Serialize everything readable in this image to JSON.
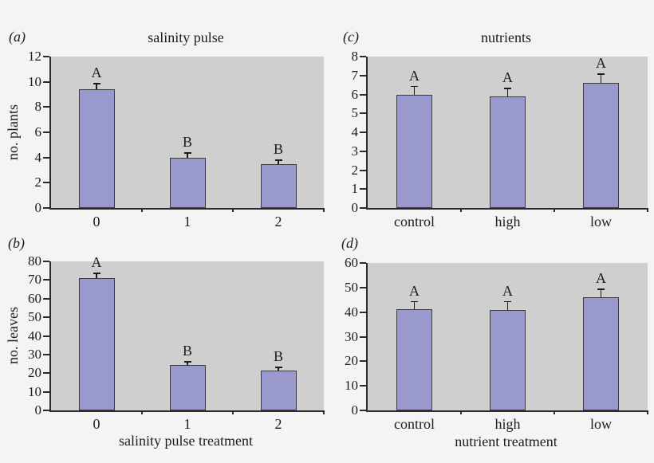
{
  "colors": {
    "bar_fill": "#9a99ce",
    "bar_border": "#3d3d3d",
    "plot_bg": "#cfcfcf",
    "page_bg": "#f4f4f4",
    "axis": "#2b2b2b",
    "text": "#1c1c1c"
  },
  "chart_data": [
    {
      "panel": "a",
      "panel_label": "(a)",
      "type": "bar",
      "title": "salinity pulse",
      "ylabel": "no. plants",
      "xlabel": "",
      "categories": [
        "0",
        "1",
        "2"
      ],
      "values": [
        9.4,
        4.0,
        3.5
      ],
      "errors_plus": [
        0.5,
        0.4,
        0.35
      ],
      "sig_letters": [
        "A",
        "B",
        "B"
      ],
      "ylim": [
        0,
        12
      ],
      "ytick_step": 2,
      "grid": false,
      "legend": false
    },
    {
      "panel": "b",
      "panel_label": "(b)",
      "type": "bar",
      "title": "",
      "ylabel": "no. leaves",
      "xlabel": "salinity pulse treatment",
      "categories": [
        "0",
        "1",
        "2"
      ],
      "values": [
        71,
        24.5,
        21.5
      ],
      "errors_plus": [
        3,
        2,
        2
      ],
      "sig_letters": [
        "A",
        "B",
        "B"
      ],
      "ylim": [
        0,
        80
      ],
      "ytick_step": 10,
      "grid": false,
      "legend": false
    },
    {
      "panel": "c",
      "panel_label": "(c)",
      "type": "bar",
      "title": "nutrients",
      "ylabel": "",
      "xlabel": "",
      "categories": [
        "control",
        "high",
        "low"
      ],
      "values": [
        6.0,
        5.9,
        6.6
      ],
      "errors_plus": [
        0.45,
        0.45,
        0.5
      ],
      "sig_letters": [
        "A",
        "A",
        "A"
      ],
      "ylim": [
        0,
        8
      ],
      "ytick_step": 1,
      "grid": false,
      "legend": false
    },
    {
      "panel": "d",
      "panel_label": "(d)",
      "type": "bar",
      "title": "",
      "ylabel": "",
      "xlabel": "nutrient treatment",
      "categories": [
        "control",
        "high",
        "low"
      ],
      "values": [
        41.3,
        41,
        46
      ],
      "errors_plus": [
        3.2,
        3.5,
        3.5
      ],
      "sig_letters": [
        "A",
        "A",
        "A"
      ],
      "ylim": [
        0,
        60
      ],
      "ytick_step": 10,
      "grid": false,
      "legend": false
    }
  ]
}
